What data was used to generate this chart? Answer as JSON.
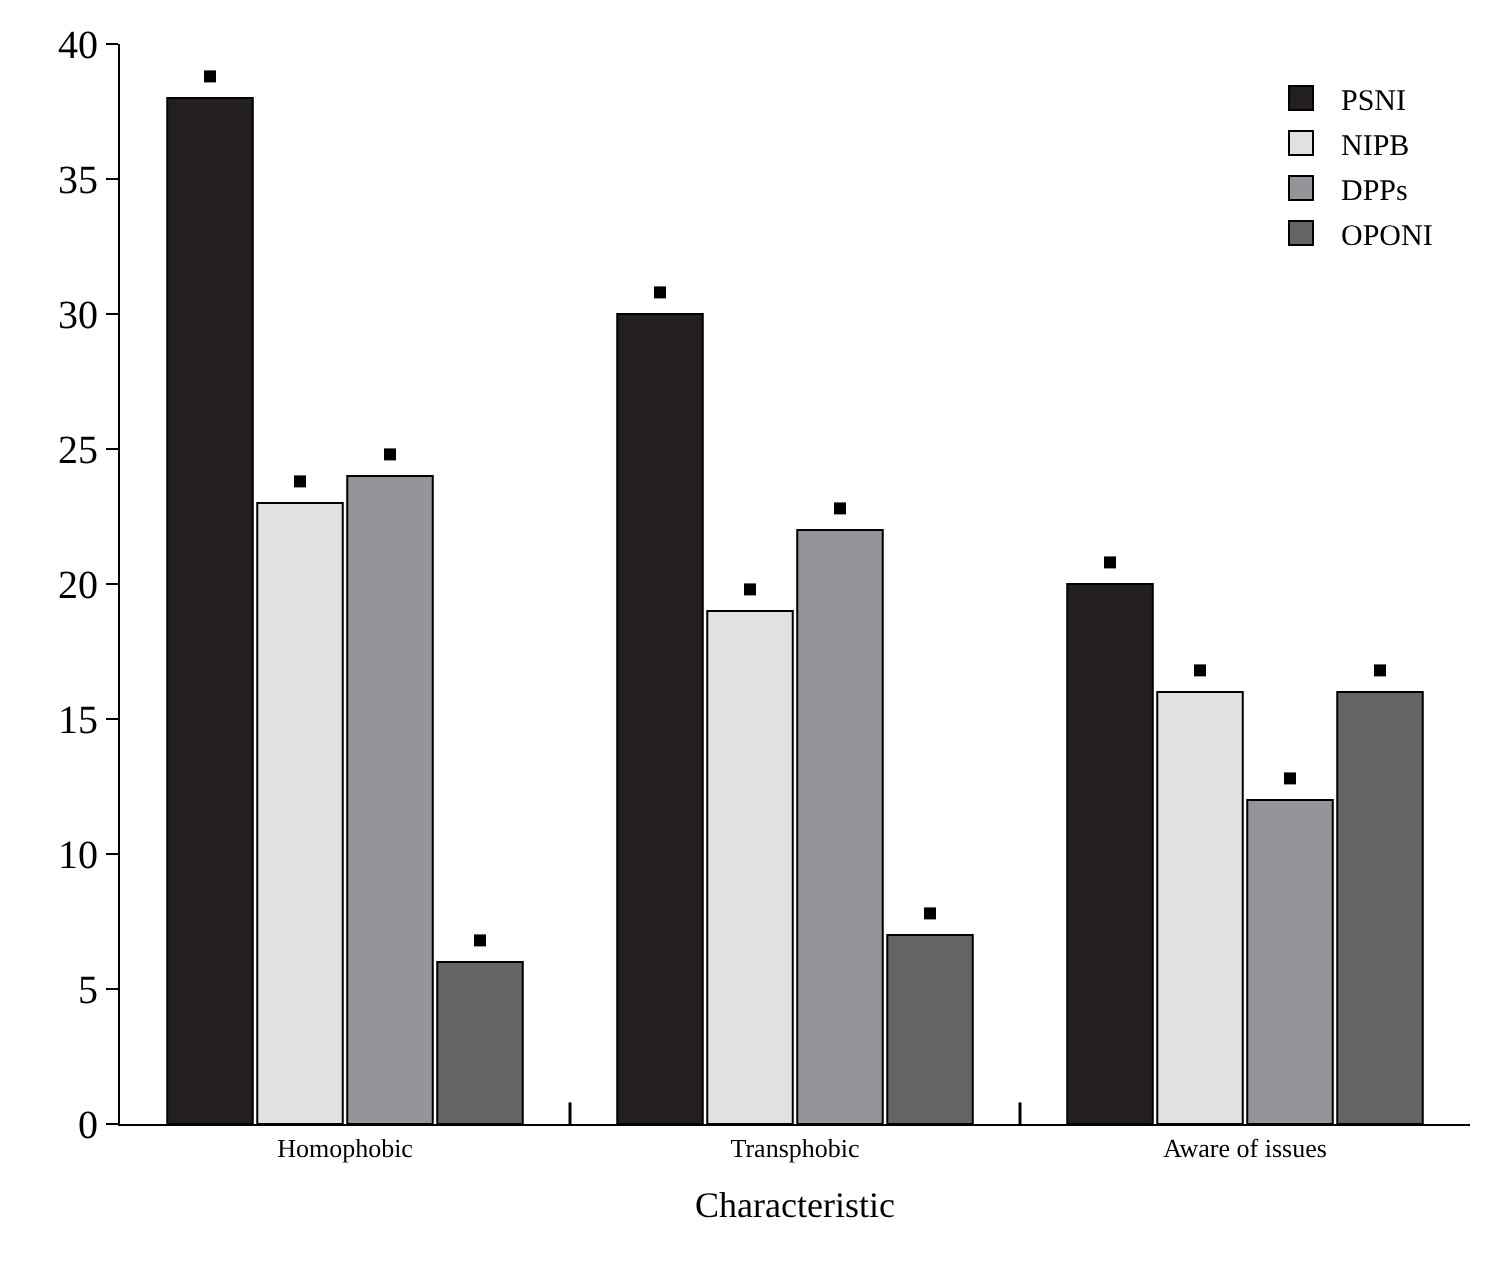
{
  "chart_data": {
    "type": "bar",
    "xlabel": "Characteristic",
    "categories": [
      "Homophobic",
      "Transphobic",
      "Aware of issues"
    ],
    "series": [
      {
        "name": "PSNI",
        "color": "#231f20",
        "values": [
          38,
          30,
          20
        ]
      },
      {
        "name": "NIPB",
        "color": "#e0e1e3",
        "values": [
          23,
          19,
          16
        ]
      },
      {
        "name": "DPPs",
        "color": "#939598",
        "values": [
          24,
          22,
          12
        ]
      },
      {
        "name": "OPONI",
        "color": "#636466",
        "values": [
          6,
          7,
          16
        ]
      },
      {
        "type": "scatter",
        "color": "#000000",
        "marker": "square",
        "values": [
          38.8,
          30.8,
          20.8
        ]
      },
      {
        "type": "scatter",
        "color": "#000000",
        "marker": "square",
        "values": [
          23.8,
          19.8,
          16.8
        ]
      },
      {
        "type": "scatter",
        "color": "#000000",
        "marker": "square",
        "values": [
          24.8,
          22.8,
          12.8
        ]
      },
      {
        "type": "scatter",
        "color": "#000000",
        "marker": "square",
        "values": [
          6.8,
          7.8,
          16.8
        ]
      }
    ],
    "ylim": [
      0,
      40
    ],
    "yticks": [
      0,
      5,
      10,
      15,
      20,
      25,
      30,
      35,
      40
    ],
    "legend": "top right"
  }
}
